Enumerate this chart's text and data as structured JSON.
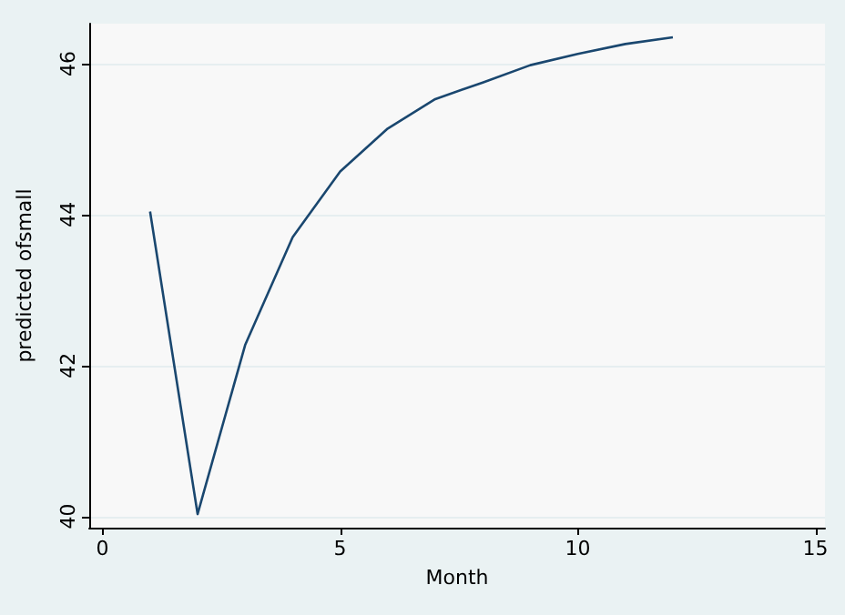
{
  "chart_data": {
    "type": "line",
    "xlabel": "Month",
    "ylabel": "predicted ofsmall",
    "x": [
      1,
      2,
      3,
      4,
      5,
      6,
      7,
      8,
      9,
      10,
      11,
      12
    ],
    "series": [
      {
        "color": "#1a476f",
        "values": [
          44.04,
          40.03,
          42.27,
          43.7,
          44.57,
          45.14,
          45.53,
          45.75,
          45.98,
          46.13,
          46.26,
          46.35
        ]
      }
    ],
    "xlim": [
      -0.28,
      15.2
    ],
    "xticks": [
      0,
      5,
      10,
      15
    ],
    "ylim": [
      39.85,
      46.53
    ],
    "yticks": [
      40,
      42,
      44,
      46
    ],
    "grid": "y",
    "marker": "none",
    "line_style": "solid"
  }
}
